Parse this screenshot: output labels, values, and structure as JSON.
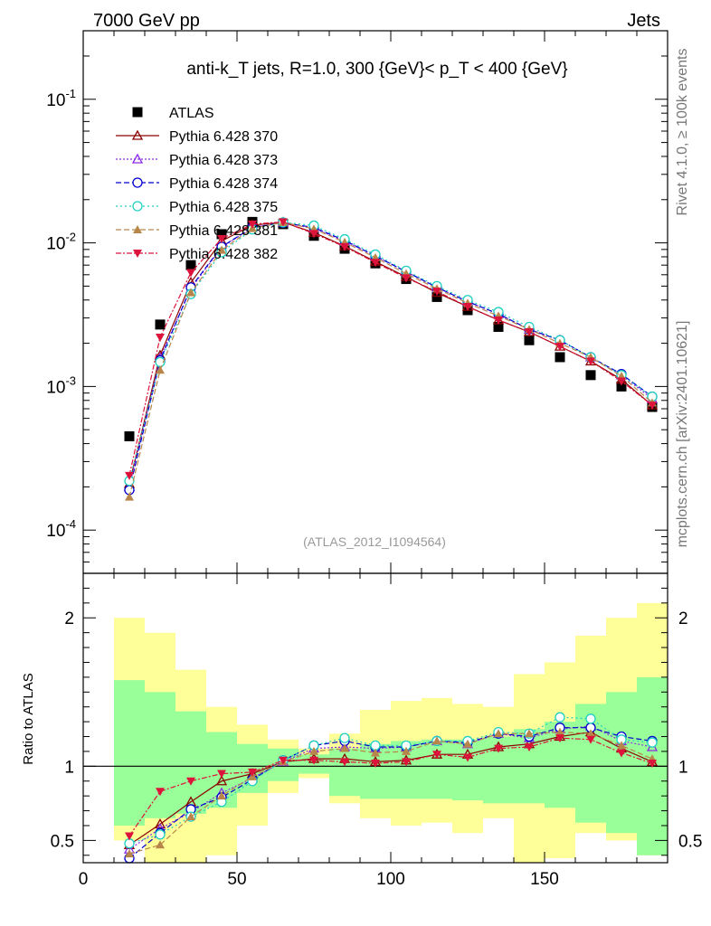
{
  "header": {
    "left": "7000 GeV pp",
    "right": "Jets"
  },
  "side_labels": {
    "rivet": "Rivet 4.1.0, ≥ 100k events",
    "mcplots": "mcplots.cern.ch [arXiv:2401.10621]"
  },
  "chart_data": {
    "type": "line",
    "title": "anti-k_T jets, R=1.0, 300 {GeV}< p_T < 400 {GeV}",
    "analysis_label": "(ATLAS_2012_I1094564)",
    "x": [
      15,
      25,
      35,
      45,
      55,
      65,
      75,
      85,
      95,
      105,
      115,
      125,
      135,
      145,
      155,
      165,
      175,
      185
    ],
    "xlim": [
      0,
      190
    ],
    "xticks": [
      "0",
      "50",
      "100",
      "150"
    ],
    "main": {
      "yscale": "log",
      "ylim": [
        5e-05,
        0.3
      ],
      "yticks": [
        "10^-4",
        "10^-3",
        "10^-2",
        "10^-1"
      ]
    },
    "ratio": {
      "ylabel": "Ratio to ATLAS",
      "ylim": [
        0.35,
        2.3
      ],
      "yticks": [
        "0.5",
        "1",
        "2"
      ],
      "yellow_band": [
        [
          0.5,
          2.0
        ],
        [
          0.35,
          1.9
        ],
        [
          0.3,
          1.65
        ],
        [
          0.4,
          1.4
        ],
        [
          0.6,
          1.28
        ],
        [
          0.82,
          1.18
        ],
        [
          0.92,
          1.12
        ],
        [
          0.75,
          1.22
        ],
        [
          0.65,
          1.38
        ],
        [
          0.6,
          1.44
        ],
        [
          0.62,
          1.46
        ],
        [
          0.55,
          1.42
        ],
        [
          0.65,
          1.4
        ],
        [
          0.35,
          1.62
        ],
        [
          0.38,
          1.7
        ],
        [
          0.55,
          1.88
        ],
        [
          0.5,
          2.0
        ],
        [
          0.4,
          2.1
        ]
      ],
      "green_band": [
        [
          0.6,
          1.58
        ],
        [
          0.65,
          1.5
        ],
        [
          0.68,
          1.37
        ],
        [
          0.72,
          1.23
        ],
        [
          0.82,
          1.15
        ],
        [
          0.9,
          1.12
        ],
        [
          0.95,
          1.08
        ],
        [
          0.8,
          1.12
        ],
        [
          0.78,
          1.15
        ],
        [
          0.78,
          1.17
        ],
        [
          0.78,
          1.18
        ],
        [
          0.77,
          1.18
        ],
        [
          0.75,
          1.2
        ],
        [
          0.75,
          1.25
        ],
        [
          0.72,
          1.3
        ],
        [
          0.62,
          1.42
        ],
        [
          0.55,
          1.5
        ],
        [
          0.4,
          1.6
        ]
      ]
    },
    "series": [
      {
        "name": "ATLAS",
        "style": "data",
        "color": "#000000",
        "marker": "square",
        "values": [
          0.00045,
          0.0027,
          0.007,
          0.0115,
          0.014,
          0.0135,
          0.0112,
          0.0091,
          0.0072,
          0.0056,
          0.0042,
          0.0034,
          0.0026,
          0.0021,
          0.0016,
          0.0012,
          0.001,
          0.00072
        ]
      },
      {
        "name": "Pythia 6.428 370",
        "color": "#8b0000",
        "marker": "triangle-open",
        "dash": "",
        "values": [
          0.00021,
          0.00165,
          0.0053,
          0.0103,
          0.0133,
          0.0139,
          0.0118,
          0.0095,
          0.0074,
          0.0058,
          0.0045,
          0.0036,
          0.0029,
          0.0024,
          0.0019,
          0.0015,
          0.00112,
          0.00074
        ],
        "ratio": [
          0.47,
          0.61,
          0.76,
          0.9,
          0.95,
          1.03,
          1.05,
          1.05,
          1.03,
          1.04,
          1.08,
          1.08,
          1.13,
          1.15,
          1.2,
          1.23,
          1.12,
          1.03
        ]
      },
      {
        "name": "Pythia 6.428 373",
        "color": "#8a2be2",
        "marker": "triangle-open",
        "dash": "2,2",
        "values": [
          0.0002,
          0.00158,
          0.0048,
          0.0093,
          0.0128,
          0.0139,
          0.0126,
          0.0103,
          0.0081,
          0.0063,
          0.0049,
          0.0039,
          0.0032,
          0.0025,
          0.0021,
          0.0016,
          0.0012,
          0.00082
        ],
        "ratio": [
          0.44,
          0.58,
          0.69,
          0.82,
          0.92,
          1.03,
          1.12,
          1.13,
          1.12,
          1.13,
          1.17,
          1.15,
          1.22,
          1.19,
          1.25,
          1.27,
          1.17,
          1.13
        ]
      },
      {
        "name": "Pythia 6.428 374",
        "color": "#0000cd",
        "marker": "circle-open",
        "dash": "6,3",
        "values": [
          0.00019,
          0.00152,
          0.0049,
          0.0094,
          0.0128,
          0.0138,
          0.0128,
          0.0104,
          0.0081,
          0.0063,
          0.0049,
          0.0039,
          0.0032,
          0.0025,
          0.0021,
          0.0016,
          0.00122,
          0.00085
        ],
        "ratio": [
          0.38,
          0.55,
          0.71,
          0.79,
          0.91,
          1.04,
          1.14,
          1.17,
          1.13,
          1.13,
          1.17,
          1.16,
          1.22,
          1.2,
          1.26,
          1.26,
          1.2,
          1.17
        ]
      },
      {
        "name": "Pythia 6.428 375",
        "color": "#20d0c0",
        "marker": "circle-open",
        "dash": "2,3",
        "values": [
          0.00022,
          0.00148,
          0.0044,
          0.0086,
          0.0124,
          0.0139,
          0.0132,
          0.0106,
          0.0083,
          0.0064,
          0.005,
          0.004,
          0.0033,
          0.0026,
          0.0021,
          0.0016,
          0.0012,
          0.00085
        ],
        "ratio": [
          0.48,
          0.54,
          0.66,
          0.76,
          0.9,
          1.04,
          1.14,
          1.19,
          1.14,
          1.14,
          1.17,
          1.17,
          1.23,
          1.22,
          1.33,
          1.32,
          1.18,
          1.16
        ]
      },
      {
        "name": "Pythia 6.428 381",
        "color": "#b8864b",
        "marker": "triangle-filled",
        "dash": "6,3",
        "values": [
          0.00017,
          0.0013,
          0.0045,
          0.0089,
          0.0126,
          0.0139,
          0.0125,
          0.0101,
          0.0079,
          0.0061,
          0.0048,
          0.0038,
          0.0031,
          0.0025,
          0.002,
          0.0016,
          0.00118,
          0.00077
        ],
        "ratio": [
          0.41,
          0.47,
          0.66,
          0.8,
          0.93,
          1.03,
          1.1,
          1.12,
          1.09,
          1.1,
          1.17,
          1.15,
          1.22,
          1.22,
          1.23,
          1.22,
          1.14,
          1.05
        ]
      },
      {
        "name": "Pythia 6.428 382",
        "color": "#dc143c",
        "marker": "triangle-down-filled",
        "dash": "6,2,2,2",
        "values": [
          0.00024,
          0.0022,
          0.0062,
          0.0107,
          0.0135,
          0.014,
          0.0116,
          0.0094,
          0.0073,
          0.0057,
          0.0046,
          0.0036,
          0.0029,
          0.0024,
          0.0019,
          0.0015,
          0.00109,
          0.00074
        ],
        "ratio": [
          0.53,
          0.83,
          0.9,
          0.95,
          0.96,
          1.04,
          1.04,
          1.03,
          1.02,
          1.03,
          1.08,
          1.06,
          1.12,
          1.13,
          1.19,
          1.18,
          1.09,
          1.02
        ]
      }
    ]
  }
}
